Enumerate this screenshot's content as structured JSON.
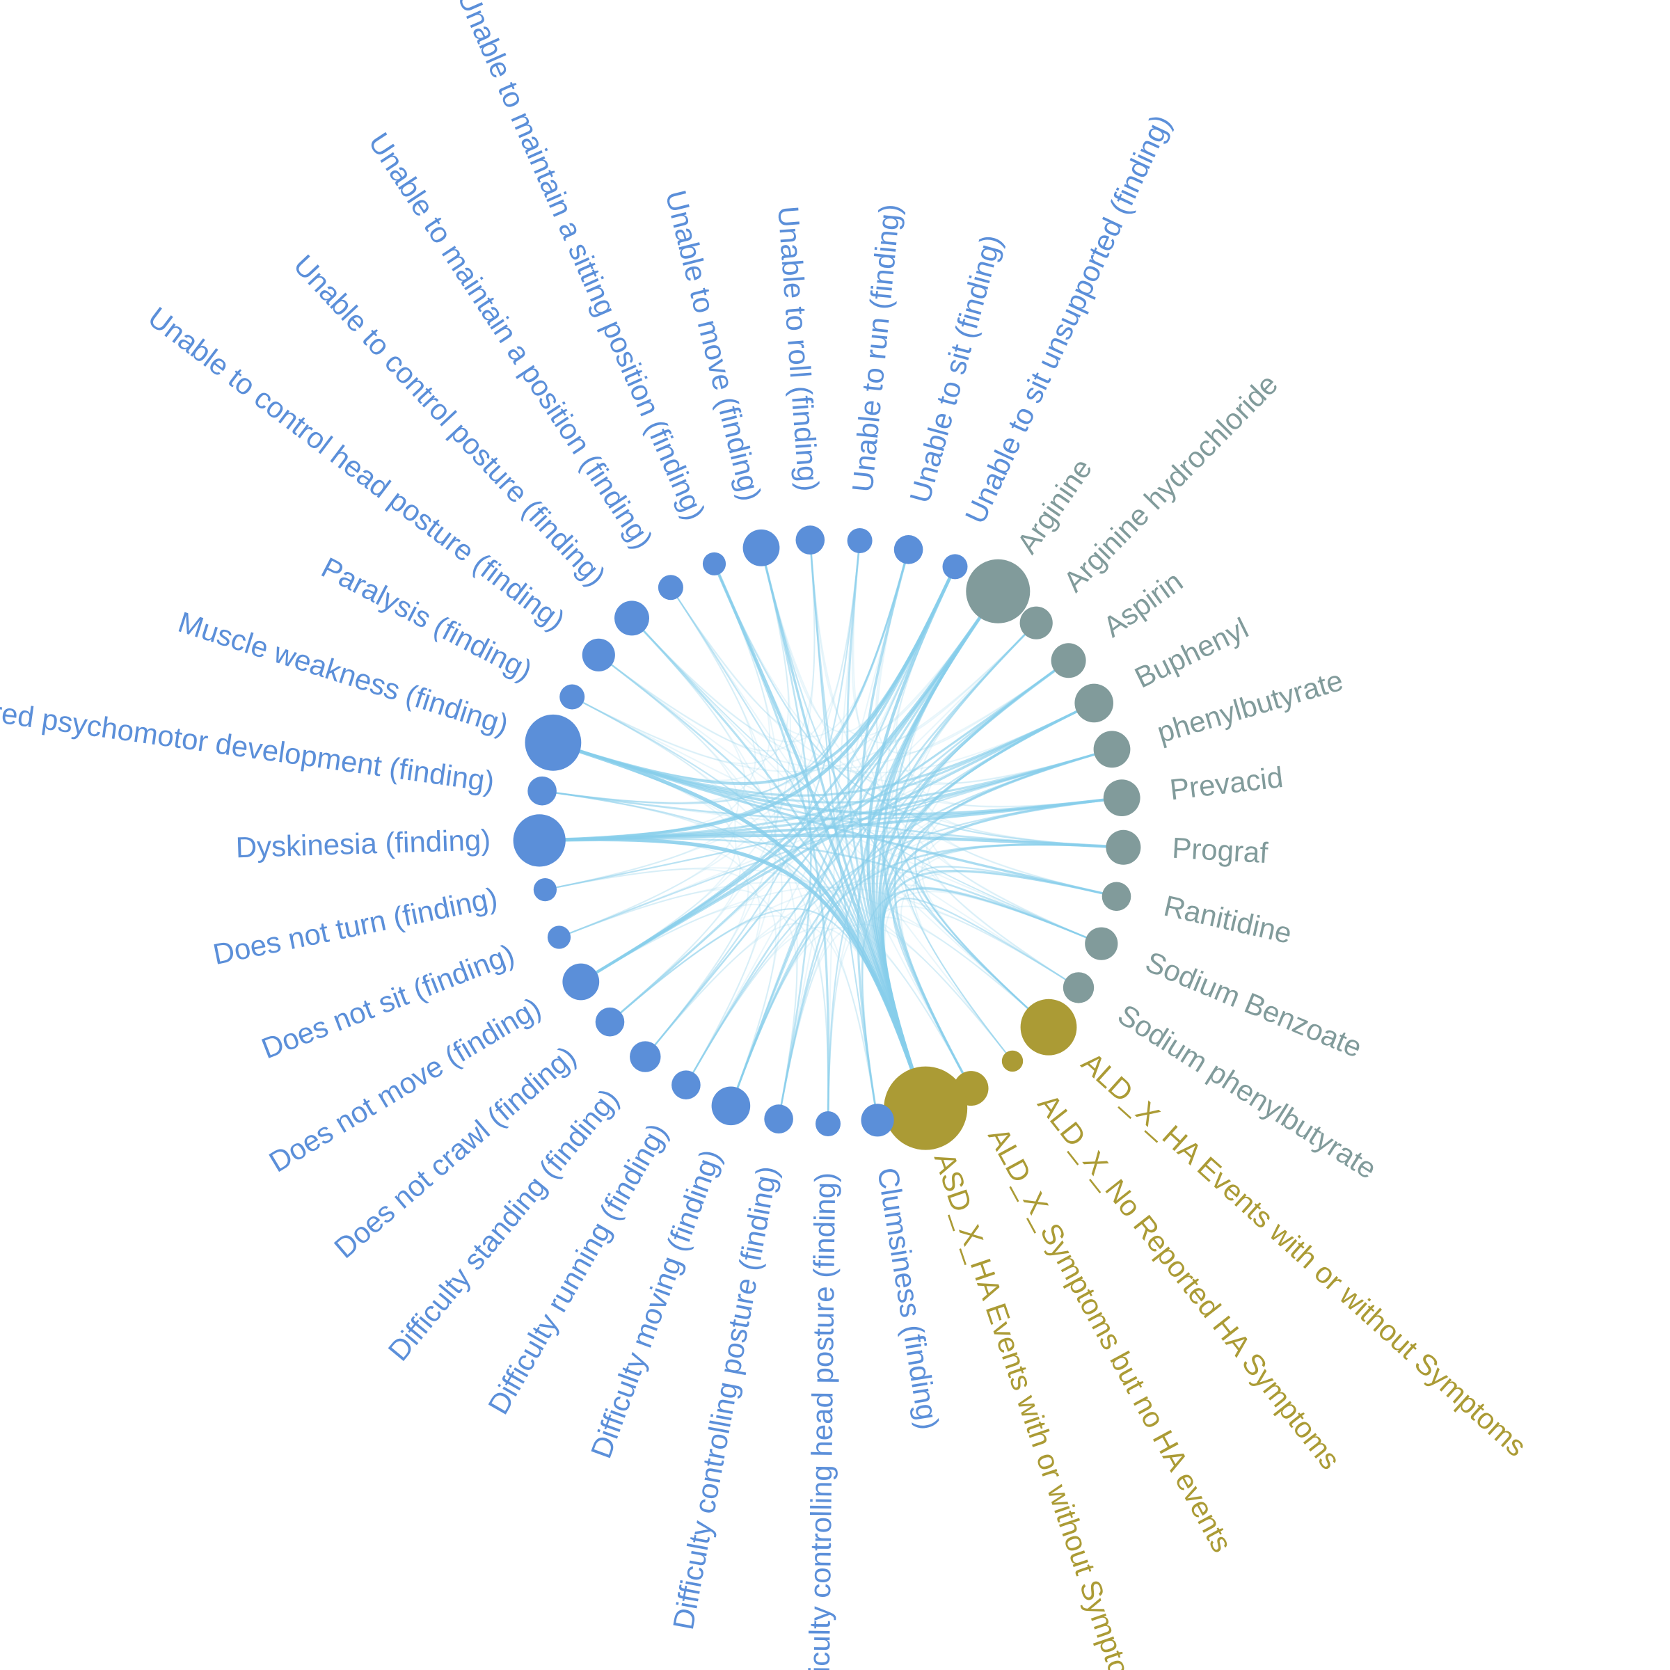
{
  "colors": {
    "finding": "#5b8fd9",
    "drug": "#819b9b",
    "cohort": "#ab9b35",
    "edge": "#87ceeb"
  },
  "chord": {
    "nodes": [
      {
        "id": "unable_sit_unsupported",
        "label": "Unable to sit unsupported (finding)",
        "group": "finding",
        "size": 1
      },
      {
        "id": "arginine",
        "label": "Arginine",
        "group": "drug",
        "size": 3
      },
      {
        "id": "arginine_hcl",
        "label": "Arginine hydrochloride",
        "group": "drug",
        "size": 1.4
      },
      {
        "id": "aspirin",
        "label": "Aspirin",
        "group": "drug",
        "size": 1.5
      },
      {
        "id": "buphenyl",
        "label": "Buphenyl",
        "group": "drug",
        "size": 1.7
      },
      {
        "id": "phenylbutyrate",
        "label": "phenylbutyrate",
        "group": "drug",
        "size": 1.6
      },
      {
        "id": "prevacid",
        "label": "Prevacid",
        "group": "drug",
        "size": 1.6
      },
      {
        "id": "prograf",
        "label": "Prograf",
        "group": "drug",
        "size": 1.5
      },
      {
        "id": "ranitidine",
        "label": "Ranitidine",
        "group": "drug",
        "size": 1.2
      },
      {
        "id": "sodium_benzoate",
        "label": "Sodium Benzoate",
        "group": "drug",
        "size": 1.4
      },
      {
        "id": "sodium_phenylbutyrate",
        "label": "Sodium phenylbutyrate",
        "group": "drug",
        "size": 1.3
      },
      {
        "id": "ald_ha_events",
        "label": "ALD_X_HA Events with or without Symptoms",
        "group": "cohort",
        "size": 2.6
      },
      {
        "id": "ald_no_reported",
        "label": "ALD_X_No Reported HA Symptoms",
        "group": "cohort",
        "size": 0.8
      },
      {
        "id": "ald_symptoms_no_events",
        "label": "ALD_X_Symptoms but no HA events",
        "group": "cohort",
        "size": 1.5
      },
      {
        "id": "asd_ha_events",
        "label": "ASD_X_HA Events with or without Symptoms",
        "group": "cohort",
        "size": 4
      },
      {
        "id": "clumsiness",
        "label": "Clumsiness (finding)",
        "group": "finding",
        "size": 1.4
      },
      {
        "id": "diff_head_posture",
        "label": "Difficulty controlling head posture (finding)",
        "group": "finding",
        "size": 1
      },
      {
        "id": "diff_posture",
        "label": "Difficulty controlling posture (finding)",
        "group": "finding",
        "size": 1.2
      },
      {
        "id": "diff_moving",
        "label": "Difficulty moving (finding)",
        "group": "finding",
        "size": 1.7
      },
      {
        "id": "diff_running",
        "label": "Difficulty running (finding)",
        "group": "finding",
        "size": 1.2
      },
      {
        "id": "diff_standing",
        "label": "Difficulty standing (finding)",
        "group": "finding",
        "size": 1.3
      },
      {
        "id": "no_crawl",
        "label": "Does not crawl (finding)",
        "group": "finding",
        "size": 1.2
      },
      {
        "id": "no_move",
        "label": "Does not move (finding)",
        "group": "finding",
        "size": 1.6
      },
      {
        "id": "no_sit",
        "label": "Does not sit (finding)",
        "group": "finding",
        "size": 0.9
      },
      {
        "id": "no_turn",
        "label": "Does not turn (finding)",
        "group": "finding",
        "size": 0.9
      },
      {
        "id": "dyskinesia",
        "label": "Dyskinesia (finding)",
        "group": "finding",
        "size": 2.4
      },
      {
        "id": "impaired_psychomotor",
        "label": "Impaired psychomotor development (finding)",
        "group": "finding",
        "size": 1.2
      },
      {
        "id": "muscle_weakness",
        "label": "Muscle weakness (finding)",
        "group": "finding",
        "size": 2.6
      },
      {
        "id": "paralysis",
        "label": "Paralysis (finding)",
        "group": "finding",
        "size": 1
      },
      {
        "id": "unable_head_posture",
        "label": "Unable to control head posture (finding)",
        "group": "finding",
        "size": 1.4
      },
      {
        "id": "unable_posture",
        "label": "Unable to control posture (finding)",
        "group": "finding",
        "size": 1.5
      },
      {
        "id": "unable_position",
        "label": "Unable to maintain a position (finding)",
        "group": "finding",
        "size": 1
      },
      {
        "id": "unable_sitting_position",
        "label": "Unable to maintain a sitting position (finding)",
        "group": "finding",
        "size": 0.9
      },
      {
        "id": "unable_move",
        "label": "Unable to move (finding)",
        "group": "finding",
        "size": 1.6
      },
      {
        "id": "unable_roll",
        "label": "Unable to roll (finding)",
        "group": "finding",
        "size": 1.2
      },
      {
        "id": "unable_run",
        "label": "Unable to run (finding)",
        "group": "finding",
        "size": 1
      },
      {
        "id": "unable_sit",
        "label": "Unable to sit (finding)",
        "group": "finding",
        "size": 1.2
      }
    ],
    "links": [
      [
        "unable_sit_unsupported",
        "dyskinesia",
        2.2
      ],
      [
        "unable_sit_unsupported",
        "muscle_weakness",
        1.8
      ],
      [
        "unable_sit_unsupported",
        "no_move",
        1.6
      ],
      [
        "unable_sit_unsupported",
        "asd_ha_events",
        2
      ],
      [
        "unable_sit_unsupported",
        "diff_moving",
        1.2
      ],
      [
        "unable_sit",
        "dyskinesia",
        1.4
      ],
      [
        "unable_sit",
        "asd_ha_events",
        1.6
      ],
      [
        "unable_sit",
        "impaired_psychomotor",
        1
      ],
      [
        "unable_run",
        "asd_ha_events",
        1.3
      ],
      [
        "unable_run",
        "diff_standing",
        1
      ],
      [
        "unable_roll",
        "asd_ha_events",
        1.3
      ],
      [
        "unable_roll",
        "clumsiness",
        0.9
      ],
      [
        "unable_move",
        "asd_ha_events",
        1.6
      ],
      [
        "unable_move",
        "diff_posture",
        1.2
      ],
      [
        "unable_move",
        "ald_ha_events",
        1
      ],
      [
        "unable_sitting_position",
        "asd_ha_events",
        2
      ],
      [
        "unable_sitting_position",
        "diff_head_posture",
        1.4
      ],
      [
        "unable_sitting_position",
        "prograf",
        1
      ],
      [
        "unable_position",
        "asd_ha_events",
        1
      ],
      [
        "unable_posture",
        "asd_ha_events",
        1.4
      ],
      [
        "unable_posture",
        "sodium_benzoate",
        0.8
      ],
      [
        "unable_head_posture",
        "asd_ha_events",
        1.2
      ],
      [
        "paralysis",
        "asd_ha_events",
        1
      ],
      [
        "muscle_weakness",
        "asd_ha_events",
        2.4
      ],
      [
        "muscle_weakness",
        "prevacid",
        1.8
      ],
      [
        "muscle_weakness",
        "ranitidine",
        1.6
      ],
      [
        "muscle_weakness",
        "buphenyl",
        1.5
      ],
      [
        "muscle_weakness",
        "phenylbutyrate",
        1.4
      ],
      [
        "muscle_weakness",
        "prograf",
        1.2
      ],
      [
        "impaired_psychomotor",
        "prevacid",
        1.2
      ],
      [
        "impaired_psychomotor",
        "asd_ha_events",
        1
      ],
      [
        "dyskinesia",
        "prograf",
        2
      ],
      [
        "dyskinesia",
        "prevacid",
        1.8
      ],
      [
        "dyskinesia",
        "phenylbutyrate",
        1.5
      ],
      [
        "dyskinesia",
        "asd_ha_events",
        2.4
      ],
      [
        "dyskinesia",
        "buphenyl",
        1.4
      ],
      [
        "dyskinesia",
        "sodium_benzoate",
        1.2
      ],
      [
        "no_turn",
        "phenylbutyrate",
        1
      ],
      [
        "no_sit",
        "phenylbutyrate",
        1
      ],
      [
        "no_move",
        "arginine",
        2
      ],
      [
        "no_move",
        "buphenyl",
        1.6
      ],
      [
        "no_move",
        "aspirin",
        1.4
      ],
      [
        "no_crawl",
        "arginine",
        1.4
      ],
      [
        "no_crawl",
        "asd_ha_events",
        1
      ],
      [
        "diff_standing",
        "arginine",
        1.2
      ],
      [
        "diff_running",
        "aspirin",
        1.2
      ],
      [
        "diff_running",
        "prevacid",
        1
      ],
      [
        "diff_moving",
        "arginine",
        1.4
      ],
      [
        "diff_moving",
        "prograf",
        1.2
      ],
      [
        "diff_moving",
        "phenylbutyrate",
        1.2
      ],
      [
        "diff_posture",
        "arginine_hcl",
        1.2
      ],
      [
        "diff_posture",
        "buphenyl",
        1
      ],
      [
        "diff_head_posture",
        "aspirin",
        1
      ],
      [
        "clumsiness",
        "arginine",
        1.4
      ],
      [
        "clumsiness",
        "sodium_benzoate",
        1
      ],
      [
        "asd_ha_events",
        "arginine",
        2
      ],
      [
        "asd_ha_events",
        "arginine_hcl",
        1.4
      ],
      [
        "asd_ha_events",
        "aspirin",
        1.8
      ],
      [
        "asd_ha_events",
        "buphenyl",
        1.6
      ],
      [
        "asd_ha_events",
        "phenylbutyrate",
        1.5
      ],
      [
        "asd_ha_events",
        "prevacid",
        1.6
      ],
      [
        "asd_ha_events",
        "prograf",
        1.4
      ],
      [
        "asd_ha_events",
        "ranitidine",
        1.4
      ],
      [
        "asd_ha_events",
        "sodium_benzoate",
        1.2
      ],
      [
        "ald_symptoms_no_events",
        "arginine",
        1.6
      ],
      [
        "ald_symptoms_no_events",
        "buphenyl",
        1.4
      ],
      [
        "ald_symptoms_no_events",
        "sodium_phenylbutyrate",
        1
      ],
      [
        "ald_ha_events",
        "arginine",
        1.2
      ],
      [
        "ald_ha_events",
        "phenylbutyrate",
        1
      ],
      [
        "ald_ha_events",
        "ranitidine",
        1
      ],
      [
        "ald_no_reported",
        "aspirin",
        0.8
      ]
    ]
  }
}
